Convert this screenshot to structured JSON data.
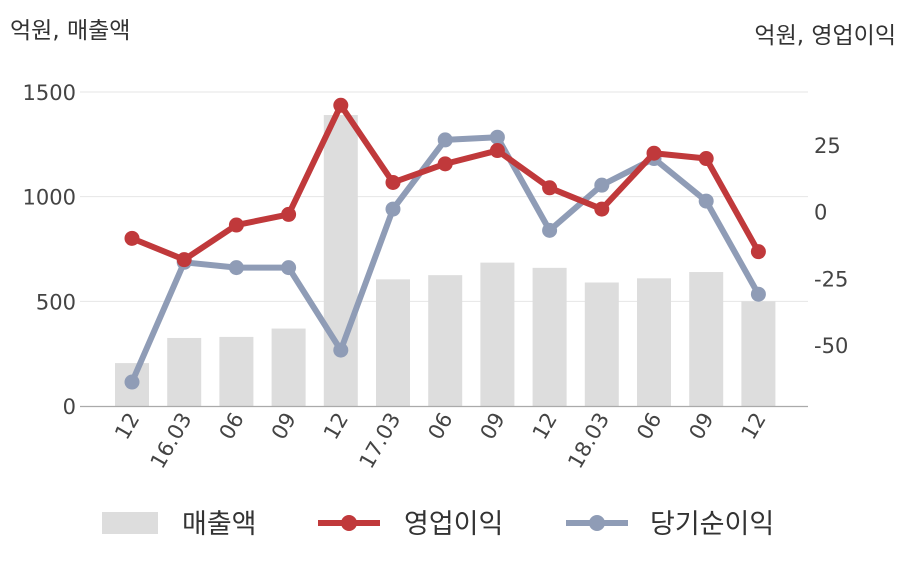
{
  "chart_data": {
    "type": "bar",
    "left_axis_unit": "억원, 매출액",
    "right_axis_unit": "억원, 영업이익",
    "categories": [
      "12",
      "16.03",
      "06",
      "09",
      "12",
      "17.03",
      "06",
      "09",
      "12",
      "18.03",
      "06",
      "09",
      "12"
    ],
    "left_ylim": [
      0,
      1500
    ],
    "left_ticks": [
      "0",
      "500",
      "1000",
      "1500"
    ],
    "right_ylim": [
      -73,
      45
    ],
    "right_ticks": [
      "-50",
      "-25",
      "0",
      "25"
    ],
    "series": [
      {
        "name": "매출액",
        "type": "bar",
        "axis": "left",
        "color": "#dddddd",
        "values": [
          205,
          325,
          330,
          370,
          1390,
          605,
          625,
          685,
          660,
          590,
          610,
          640,
          500
        ]
      },
      {
        "name": "영업이익",
        "type": "line",
        "axis": "right",
        "color": "#c0393b",
        "values": [
          -10,
          -18,
          -5,
          -1,
          40,
          11,
          18,
          23,
          9,
          1,
          22,
          20,
          -15
        ]
      },
      {
        "name": "당기순이익",
        "type": "line",
        "axis": "right",
        "color": "#8f9cb6",
        "values": [
          -64,
          -19,
          -21,
          -21,
          -52,
          1,
          27,
          28,
          -7,
          10,
          20,
          4,
          -31
        ]
      }
    ],
    "grid": true,
    "legend_position": "bottom"
  }
}
